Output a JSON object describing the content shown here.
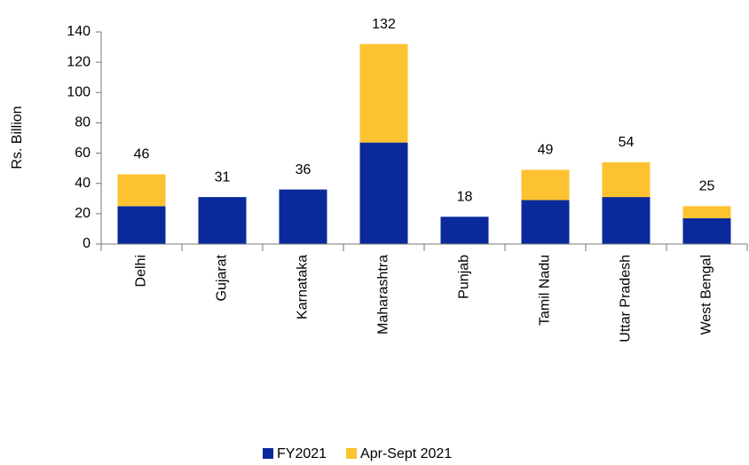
{
  "chart_data": {
    "type": "bar",
    "stacked": true,
    "y_label": "Rs. Billion",
    "categories": [
      "Delhi",
      "Gujarat",
      "Karnataka",
      "Maharashtra",
      "Punjab",
      "Tamil Nadu",
      "Uttar Pradesh",
      "West Bengal"
    ],
    "series": [
      {
        "name": "FY2021",
        "color": "#0a2a9b",
        "values": [
          25,
          31,
          36,
          67,
          18,
          29,
          31,
          17
        ]
      },
      {
        "name": "Apr-Sept 2021",
        "color": "#fdc230",
        "values": [
          21,
          0,
          0,
          65,
          0,
          20,
          23,
          8
        ]
      }
    ],
    "total_labels": [
      46,
      31,
      36,
      132,
      18,
      49,
      54,
      25
    ],
    "ylim": [
      0,
      140
    ],
    "yticks": [
      0,
      20,
      40,
      60,
      80,
      100,
      120,
      140
    ],
    "grid": false,
    "legend": "bottom"
  }
}
